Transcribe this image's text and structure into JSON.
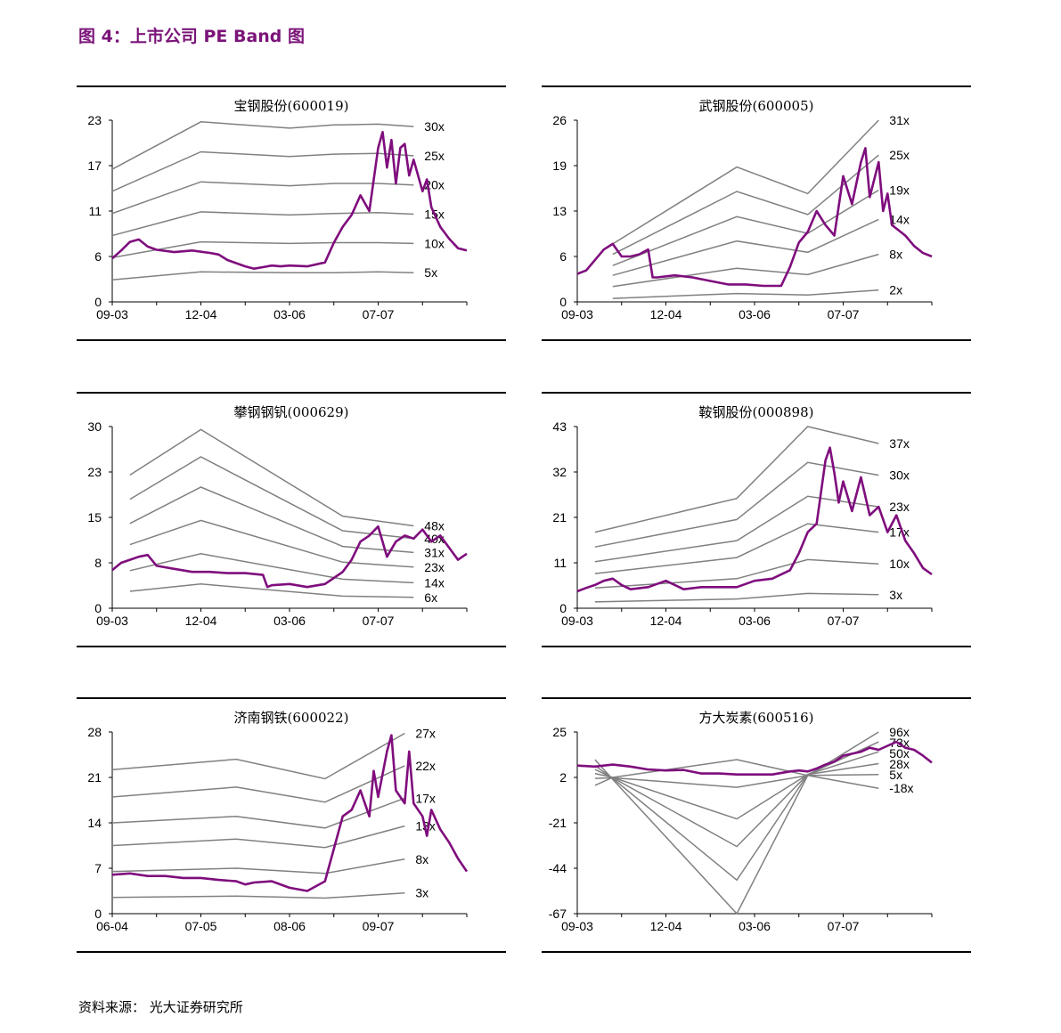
{
  "figure": {
    "title": "图 4：上市公司 PE Band 图",
    "source": "资料来源： 光大证券研究所"
  },
  "colors": {
    "price": "#7f0d7d",
    "band": "#808080",
    "title": "#7b1479"
  },
  "chart_data": [
    {
      "type": "line",
      "title": "宝钢股份(600019)",
      "x_ticks": [
        "09-03",
        "12-04",
        "03-06",
        "07-07"
      ],
      "y_ticks": [
        "0",
        "6",
        "11",
        "17",
        "23"
      ],
      "ylim": [
        0,
        23
      ],
      "x": [
        0,
        10,
        20,
        25,
        30,
        34
      ],
      "series": [
        {
          "name": "30x",
          "values": [
            16.8,
            22.8,
            22.0,
            22.4,
            22.5,
            22.2
          ]
        },
        {
          "name": "25x",
          "values": [
            14.0,
            19.0,
            18.4,
            18.7,
            18.8,
            18.5
          ]
        },
        {
          "name": "20x",
          "values": [
            11.2,
            15.2,
            14.7,
            15.0,
            15.0,
            14.8
          ]
        },
        {
          "name": "15x",
          "values": [
            8.4,
            11.4,
            11.0,
            11.2,
            11.3,
            11.1
          ]
        },
        {
          "name": "10x",
          "values": [
            5.6,
            7.6,
            7.4,
            7.5,
            7.5,
            7.4
          ]
        },
        {
          "name": "5x",
          "values": [
            2.8,
            3.8,
            3.7,
            3.7,
            3.8,
            3.7
          ]
        }
      ],
      "price": {
        "x": [
          0,
          1,
          2,
          3,
          4,
          5,
          7,
          9,
          11,
          12,
          13,
          15,
          16,
          17,
          18,
          19,
          20,
          22,
          24,
          25,
          26,
          27,
          28,
          29,
          30,
          30.5,
          31,
          31.5,
          32,
          32.5,
          33,
          33.5,
          34,
          35,
          35.5,
          36,
          37,
          38,
          39,
          40
        ],
        "values": [
          5.5,
          6.5,
          7.6,
          7.9,
          7.0,
          6.6,
          6.3,
          6.5,
          6.2,
          6.0,
          5.3,
          4.5,
          4.2,
          4.4,
          4.6,
          4.5,
          4.6,
          4.5,
          5.0,
          7.5,
          9.5,
          11.0,
          13.5,
          11.5,
          19.5,
          21.5,
          17.0,
          20.5,
          15.0,
          19.5,
          20.0,
          16.0,
          18.0,
          14.0,
          15.5,
          12.0,
          9.5,
          8.0,
          6.8,
          6.5
        ]
      }
    },
    {
      "type": "line",
      "title": "武钢股份(600005)",
      "x_ticks": [
        "09-03",
        "12-04",
        "03-06",
        "07-07"
      ],
      "y_ticks": [
        "0",
        "6",
        "13",
        "19",
        "26"
      ],
      "ylim": [
        0,
        26
      ],
      "x": [
        4,
        18,
        26,
        34
      ],
      "series": [
        {
          "name": "31x",
          "values": [
            8.3,
            19.3,
            15.5,
            26.0
          ]
        },
        {
          "name": "25x",
          "values": [
            6.8,
            15.8,
            12.5,
            21.0
          ]
        },
        {
          "name": "19x",
          "values": [
            5.2,
            12.2,
            9.8,
            16.0
          ]
        },
        {
          "name": "14x",
          "values": [
            3.8,
            8.7,
            7.1,
            11.8
          ]
        },
        {
          "name": "8x",
          "values": [
            2.2,
            4.8,
            3.9,
            6.8
          ]
        },
        {
          "name": "2x",
          "values": [
            0.5,
            1.2,
            1.0,
            1.7
          ]
        }
      ],
      "price": {
        "x": [
          0,
          1,
          2,
          3,
          4,
          5,
          6,
          7,
          8,
          8.5,
          9,
          11,
          13,
          15,
          17,
          19,
          21,
          23,
          24,
          25,
          26,
          27,
          28,
          29,
          30,
          31,
          32,
          32.5,
          33,
          34,
          34.5,
          35,
          35.5,
          36,
          37,
          38,
          39,
          40
        ],
        "values": [
          4.0,
          4.5,
          6.0,
          7.5,
          8.3,
          6.5,
          6.5,
          6.8,
          7.5,
          3.5,
          3.5,
          3.8,
          3.5,
          3.0,
          2.5,
          2.5,
          2.3,
          2.3,
          5.0,
          8.5,
          10.0,
          13.0,
          11.0,
          9.5,
          18.0,
          14.0,
          20.0,
          22.0,
          15.0,
          20.0,
          13.0,
          15.5,
          11.0,
          10.5,
          9.5,
          8.0,
          7.0,
          6.5
        ]
      }
    },
    {
      "type": "line",
      "title": "攀钢钢钒(000629)",
      "x_ticks": [
        "09-03",
        "12-04",
        "03-06",
        "07-07"
      ],
      "y_ticks": [
        "0",
        "8",
        "15",
        "23",
        "30"
      ],
      "ylim": [
        0,
        30
      ],
      "x": [
        2,
        10,
        26,
        34
      ],
      "series": [
        {
          "name": "48x",
          "values": [
            22.0,
            29.5,
            15.2,
            13.6
          ]
        },
        {
          "name": "40x",
          "values": [
            18.0,
            25.0,
            12.8,
            11.5
          ]
        },
        {
          "name": "31x",
          "values": [
            14.0,
            20.0,
            10.2,
            9.2
          ]
        },
        {
          "name": "23x",
          "values": [
            10.5,
            14.5,
            7.6,
            6.8
          ]
        },
        {
          "name": "14x",
          "values": [
            6.2,
            9.0,
            4.8,
            4.2
          ]
        },
        {
          "name": "6x",
          "values": [
            2.8,
            4.0,
            2.0,
            1.8
          ]
        }
      ],
      "price": {
        "x": [
          0,
          1,
          2,
          3,
          4,
          5,
          7,
          9,
          11,
          13,
          15,
          17,
          17.5,
          18,
          20,
          22,
          24,
          25,
          26,
          27,
          28,
          29,
          30,
          31,
          32,
          33,
          34,
          35,
          36,
          37,
          38,
          39,
          40
        ],
        "values": [
          6.3,
          7.5,
          8.0,
          8.5,
          8.8,
          7.0,
          6.5,
          6.0,
          6.0,
          5.8,
          5.8,
          5.5,
          3.5,
          3.8,
          4.0,
          3.5,
          4.0,
          5.0,
          6.0,
          8.0,
          11.0,
          12.0,
          13.5,
          8.5,
          11.0,
          12.0,
          11.5,
          13.0,
          11.0,
          12.0,
          10.0,
          8.0,
          9.0
        ]
      }
    },
    {
      "type": "line",
      "title": "鞍钢股份(000898)",
      "x_ticks": [
        "09-03",
        "12-04",
        "03-06",
        "07-07"
      ],
      "y_ticks": [
        "0",
        "11",
        "21",
        "32",
        "43"
      ],
      "ylim": [
        0,
        43
      ],
      "x": [
        2,
        18,
        26,
        34
      ],
      "series": [
        {
          "name": "37x",
          "values": [
            18.0,
            26.0,
            43.0,
            39.0
          ]
        },
        {
          "name": "30x",
          "values": [
            14.5,
            21.0,
            34.5,
            31.5
          ]
        },
        {
          "name": "23x",
          "values": [
            11.0,
            16.0,
            26.5,
            24.0
          ]
        },
        {
          "name": "17x",
          "values": [
            8.2,
            12.0,
            20.0,
            18.0
          ]
        },
        {
          "name": "10x",
          "values": [
            4.8,
            7.0,
            11.5,
            10.5
          ]
        },
        {
          "name": "3x",
          "values": [
            1.5,
            2.2,
            3.5,
            3.2
          ]
        }
      ],
      "price": {
        "x": [
          0,
          1,
          2,
          3,
          4,
          5,
          6,
          8,
          10,
          12,
          14,
          16,
          18,
          20,
          22,
          24,
          25,
          26,
          27,
          28,
          28.5,
          29,
          29.5,
          30,
          31,
          32,
          33,
          34,
          35,
          36,
          37,
          38,
          39,
          40
        ],
        "values": [
          4.0,
          4.8,
          5.5,
          6.5,
          7.0,
          5.5,
          4.5,
          5.0,
          6.5,
          4.5,
          5.0,
          5.0,
          5.0,
          6.5,
          7.0,
          9.0,
          13.0,
          18.0,
          20.0,
          35.0,
          38.0,
          32.0,
          25.0,
          30.0,
          23.0,
          31.0,
          22.0,
          24.0,
          18.0,
          22.0,
          16.0,
          13.0,
          9.5,
          8.0
        ]
      }
    },
    {
      "type": "line",
      "title": "济南钢铁(600022)",
      "x_ticks": [
        "06-04",
        "07-05",
        "08-06",
        "09-07"
      ],
      "y_ticks": [
        "0",
        "7",
        "14",
        "21",
        "28"
      ],
      "ylim": [
        0,
        28
      ],
      "x": [
        0,
        14,
        24,
        33
      ],
      "series": [
        {
          "name": "27x",
          "values": [
            22.2,
            23.8,
            20.8,
            27.8
          ]
        },
        {
          "name": "22x",
          "values": [
            18.0,
            19.5,
            17.2,
            22.8
          ]
        },
        {
          "name": "17x",
          "values": [
            14.0,
            15.0,
            13.2,
            17.8
          ]
        },
        {
          "name": "13x",
          "values": [
            10.5,
            11.5,
            10.2,
            13.5
          ]
        },
        {
          "name": "8x",
          "values": [
            6.5,
            7.0,
            6.2,
            8.4
          ]
        },
        {
          "name": "3x",
          "values": [
            2.5,
            2.7,
            2.4,
            3.2
          ]
        }
      ],
      "price": {
        "x": [
          0,
          2,
          4,
          6,
          8,
          10,
          12,
          14,
          15,
          16,
          18,
          20,
          22,
          24,
          25,
          26,
          27,
          28,
          29,
          29.5,
          30,
          31,
          31.5,
          32,
          33,
          33.5,
          34,
          35,
          35.5,
          36,
          37,
          38,
          39,
          40
        ],
        "values": [
          6.0,
          6.2,
          5.8,
          5.8,
          5.5,
          5.5,
          5.2,
          5.0,
          4.5,
          4.8,
          5.0,
          4.0,
          3.5,
          5.0,
          10.0,
          15.0,
          16.0,
          19.0,
          15.0,
          22.0,
          18.0,
          25.0,
          27.5,
          19.0,
          17.0,
          25.0,
          17.0,
          15.0,
          12.0,
          16.0,
          13.0,
          11.0,
          8.5,
          6.5
        ]
      }
    },
    {
      "type": "line",
      "title": "方大炭素(600516)",
      "x_ticks": [
        "09-03",
        "12-04",
        "03-06",
        "07-07"
      ],
      "y_ticks": [
        "-67",
        "-44",
        "-21",
        "2",
        "25"
      ],
      "ylim": [
        -67,
        25
      ],
      "x": [
        2,
        4,
        18,
        26,
        34
      ],
      "series": [
        {
          "name": "96x",
          "values": [
            11.0,
            1.0,
            -67.0,
            3.0,
            25.0
          ]
        },
        {
          "name": "73x",
          "values": [
            8.0,
            1.5,
            -50.0,
            3.5,
            20.0
          ]
        },
        {
          "name": "50x",
          "values": [
            6.0,
            1.8,
            -33.0,
            3.5,
            15.0
          ]
        },
        {
          "name": "28x",
          "values": [
            4.0,
            2.0,
            -19.0,
            3.5,
            9.0
          ]
        },
        {
          "name": "5x",
          "values": [
            1.5,
            1.8,
            -3.0,
            3.0,
            3.5
          ]
        },
        {
          "name": "-18x",
          "values": [
            -2.0,
            2.0,
            11.0,
            3.0,
            -3.5
          ]
        }
      ],
      "price": {
        "x": [
          0,
          2,
          4,
          6,
          8,
          10,
          12,
          14,
          16,
          18,
          20,
          22,
          24,
          25,
          26,
          27,
          28,
          29,
          30,
          31,
          32,
          33,
          34,
          35,
          36,
          37,
          38,
          39,
          40
        ],
        "values": [
          8.0,
          7.5,
          8.5,
          7.5,
          6.0,
          5.5,
          5.8,
          4.0,
          4.0,
          3.5,
          3.5,
          3.5,
          5.0,
          5.5,
          5.0,
          6.5,
          8.5,
          10.0,
          13.0,
          14.0,
          15.0,
          17.0,
          16.0,
          18.0,
          20.0,
          17.0,
          16.0,
          13.0,
          9.5
        ]
      }
    }
  ]
}
